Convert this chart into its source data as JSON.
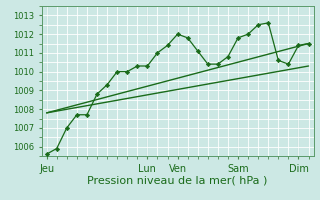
{
  "title": "",
  "xlabel": "Pression niveau de la mer( hPa )",
  "ylabel": "",
  "bg_color": "#cce8e4",
  "grid_color": "#ffffff",
  "line_color": "#1a6b1a",
  "ylim": [
    1005.5,
    1013.5
  ],
  "yticks": [
    1006,
    1007,
    1008,
    1009,
    1010,
    1011,
    1012,
    1013
  ],
  "x_day_labels": [
    "Jeu",
    "Lun",
    "Ven",
    "Sam",
    "Dim"
  ],
  "x_day_positions": [
    0,
    10,
    13,
    19,
    25
  ],
  "series1_x": [
    0,
    1,
    2,
    3,
    4,
    5,
    6,
    7,
    8,
    9,
    10,
    11,
    12,
    13,
    14,
    15,
    16,
    17,
    18,
    19,
    20,
    21,
    22,
    23,
    24,
    25,
    26
  ],
  "series1_y": [
    1005.6,
    1005.9,
    1007.0,
    1007.7,
    1007.7,
    1008.8,
    1009.3,
    1010.0,
    1010.0,
    1010.3,
    1010.3,
    1011.0,
    1011.4,
    1012.0,
    1011.8,
    1011.1,
    1010.4,
    1010.4,
    1010.8,
    1011.8,
    1012.0,
    1012.5,
    1012.6,
    1010.6,
    1010.4,
    1011.4,
    1011.5
  ],
  "series2_x": [
    0,
    26
  ],
  "series2_y": [
    1007.8,
    1010.3
  ],
  "series3_x": [
    0,
    26
  ],
  "series3_y": [
    1007.8,
    1011.5
  ],
  "xlim": [
    -0.5,
    26.5
  ],
  "minor_x_step": 1,
  "minor_y_step": 0.5,
  "xlabel_fontsize": 8,
  "ytick_fontsize": 6,
  "xtick_fontsize": 7
}
